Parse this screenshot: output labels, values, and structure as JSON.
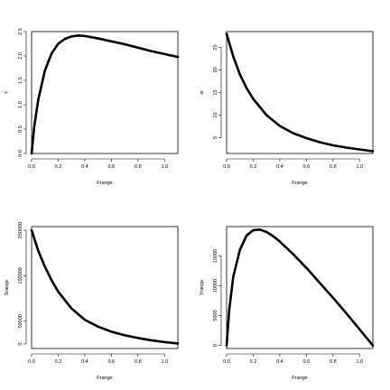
{
  "chart_data": [
    {
      "type": "line",
      "xlabel": "Frange",
      "ylabel": "Y",
      "xlim": [
        0.0,
        1.1
      ],
      "ylim": [
        0.0,
        2.5
      ],
      "xticks": [
        0.0,
        0.2,
        0.4,
        0.6,
        0.8,
        1.0
      ],
      "xtick_labels": [
        "0.0",
        "0.2",
        "0.4",
        "0.6",
        "0.8",
        "1.0"
      ],
      "yticks": [
        0.0,
        0.5,
        1.0,
        1.5,
        2.0,
        2.5
      ],
      "ytick_labels": [
        "0.0",
        "0.5",
        "1.0",
        "1.5",
        "2.0",
        "2.5"
      ],
      "series": [
        {
          "x": [
            0.0,
            0.02,
            0.05,
            0.1,
            0.15,
            0.2,
            0.25,
            0.3,
            0.35,
            0.4,
            0.5,
            0.6,
            0.7,
            0.8,
            0.9,
            1.0,
            1.1
          ],
          "values": [
            0.0,
            0.55,
            1.1,
            1.7,
            2.05,
            2.25,
            2.35,
            2.4,
            2.42,
            2.41,
            2.36,
            2.3,
            2.24,
            2.17,
            2.1,
            2.04,
            1.98
          ]
        }
      ]
    },
    {
      "type": "line",
      "xlabel": "Frange",
      "ylabel": "sr",
      "xlim": [
        0.0,
        1.1
      ],
      "ylim": [
        1.5,
        28.5
      ],
      "xticks": [
        0.0,
        0.2,
        0.4,
        0.6,
        0.8,
        1.0
      ],
      "xtick_labels": [
        "0.0",
        "0.2",
        "0.4",
        "0.6",
        "0.8",
        "1.0"
      ],
      "yticks": [
        5,
        10,
        15,
        20,
        25
      ],
      "ytick_labels": [
        "5",
        "10",
        "15",
        "20",
        "25"
      ],
      "series": [
        {
          "x": [
            0.0,
            0.05,
            0.1,
            0.15,
            0.2,
            0.3,
            0.4,
            0.5,
            0.6,
            0.7,
            0.8,
            0.9,
            1.0,
            1.1
          ],
          "values": [
            28.0,
            23.0,
            19.0,
            16.0,
            13.6,
            10.0,
            7.6,
            6.0,
            4.9,
            4.0,
            3.3,
            2.8,
            2.4,
            2.0
          ]
        }
      ]
    },
    {
      "type": "line",
      "xlabel": "Frange",
      "ylabel": "Srange",
      "xlim": [
        0.0,
        1.1
      ],
      "ylim": [
        -10000,
        258000
      ],
      "xticks": [
        0.0,
        0.2,
        0.4,
        0.6,
        0.8,
        1.0
      ],
      "xtick_labels": [
        "0.0",
        "0.2",
        "0.4",
        "0.6",
        "0.8",
        "1.0"
      ],
      "yticks": [
        0,
        50000,
        150000,
        250000
      ],
      "ytick_labels": [
        "0",
        "50000",
        "150000",
        "250000"
      ],
      "series": [
        {
          "x": [
            0.0,
            0.05,
            0.1,
            0.15,
            0.2,
            0.3,
            0.4,
            0.5,
            0.6,
            0.7,
            0.8,
            0.9,
            1.0,
            1.1
          ],
          "values": [
            250000,
            205000,
            170000,
            140000,
            115000,
            78000,
            53000,
            38000,
            27000,
            19000,
            13000,
            8000,
            4000,
            1000
          ]
        }
      ]
    },
    {
      "type": "line",
      "xlabel": "Frange",
      "ylabel": "Yrange",
      "xlim": [
        0.0,
        1.1
      ],
      "ylim": [
        -500,
        19900
      ],
      "xticks": [
        0.0,
        0.2,
        0.4,
        0.6,
        0.8,
        1.0
      ],
      "xtick_labels": [
        "0.0",
        "0.2",
        "0.4",
        "0.6",
        "0.8",
        "1.0"
      ],
      "yticks": [
        0,
        5000,
        10000,
        15000
      ],
      "ytick_labels": [
        "0",
        "5000",
        "10000",
        "15000"
      ],
      "series": [
        {
          "x": [
            0.0,
            0.02,
            0.05,
            0.1,
            0.15,
            0.2,
            0.25,
            0.3,
            0.35,
            0.4,
            0.5,
            0.6,
            0.7,
            0.8,
            0.9,
            1.0,
            1.1
          ],
          "values": [
            0,
            6000,
            11500,
            16000,
            18400,
            19300,
            19400,
            19000,
            18300,
            17400,
            15300,
            13000,
            10500,
            8000,
            5400,
            2700,
            0
          ]
        }
      ]
    }
  ]
}
